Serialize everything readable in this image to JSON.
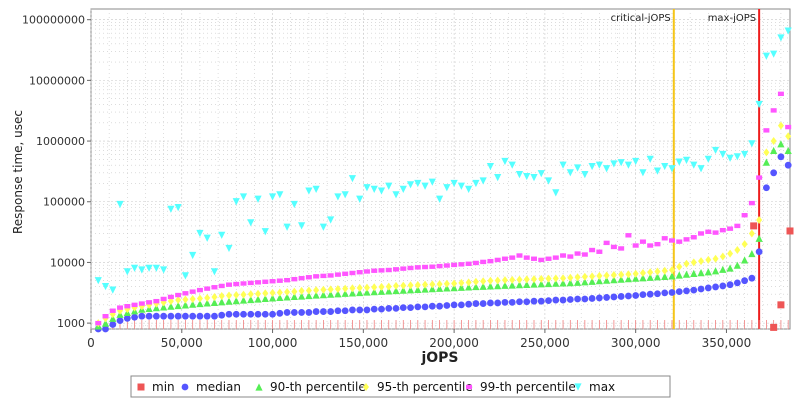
{
  "chart_data": {
    "type": "scatter",
    "title": "",
    "xlabel": "jOPS",
    "ylabel": "Response time, usec",
    "xlim": [
      0,
      385000
    ],
    "ylim": [
      800,
      150000000
    ],
    "y_scale": "log",
    "grid": true,
    "legend_position": "bottom",
    "x_ticks": [
      0,
      50000,
      100000,
      150000,
      200000,
      250000,
      300000,
      350000
    ],
    "x_tick_labels": [
      "0",
      "50,000",
      "100,000",
      "150,000",
      "200,000",
      "250,000",
      "300,000",
      "350,000"
    ],
    "y_ticks": [
      1000,
      10000,
      100000,
      1000000,
      10000000,
      100000000
    ],
    "y_tick_labels": [
      "1000",
      "10000",
      "100000",
      "1000000",
      "10000000",
      "100000000"
    ],
    "vlines": [
      {
        "label": "critical-jOPS",
        "x": 321000,
        "color": "#f5c518"
      },
      {
        "label": "max-jOPS",
        "x": 368000,
        "color": "#ee1c1c"
      }
    ],
    "series": [
      {
        "name": "min",
        "color": "#ee5555",
        "marker": "square",
        "x": [
          365000,
          376000,
          380000,
          385000
        ],
        "y": [
          40000,
          850,
          2000,
          33000
        ]
      },
      {
        "name": "median",
        "color": "#5555ff",
        "marker": "circle",
        "x": [
          4000,
          8000,
          12000,
          16000,
          20000,
          24000,
          28000,
          32000,
          36000,
          40000,
          44000,
          48000,
          52000,
          56000,
          60000,
          64000,
          68000,
          72000,
          76000,
          80000,
          84000,
          88000,
          92000,
          96000,
          100000,
          104000,
          108000,
          112000,
          116000,
          120000,
          124000,
          128000,
          132000,
          136000,
          140000,
          144000,
          148000,
          152000,
          156000,
          160000,
          164000,
          168000,
          172000,
          176000,
          180000,
          184000,
          188000,
          192000,
          196000,
          200000,
          204000,
          208000,
          212000,
          216000,
          220000,
          224000,
          228000,
          232000,
          236000,
          240000,
          244000,
          248000,
          252000,
          256000,
          260000,
          264000,
          268000,
          272000,
          276000,
          280000,
          284000,
          288000,
          292000,
          296000,
          300000,
          304000,
          308000,
          312000,
          316000,
          320000,
          324000,
          328000,
          332000,
          336000,
          340000,
          344000,
          348000,
          352000,
          356000,
          360000,
          364000,
          368000,
          372000,
          376000,
          380000,
          384000
        ],
        "y": [
          800,
          800,
          950,
          1100,
          1200,
          1250,
          1300,
          1300,
          1300,
          1300,
          1300,
          1300,
          1300,
          1300,
          1300,
          1300,
          1300,
          1350,
          1400,
          1400,
          1400,
          1400,
          1400,
          1400,
          1400,
          1450,
          1500,
          1500,
          1500,
          1500,
          1550,
          1550,
          1550,
          1600,
          1600,
          1650,
          1650,
          1650,
          1700,
          1700,
          1750,
          1750,
          1800,
          1800,
          1850,
          1850,
          1900,
          1900,
          1950,
          2000,
          2000,
          2050,
          2100,
          2100,
          2150,
          2150,
          2200,
          2200,
          2250,
          2250,
          2300,
          2300,
          2350,
          2400,
          2400,
          2450,
          2500,
          2500,
          2550,
          2600,
          2650,
          2700,
          2750,
          2800,
          2850,
          2950,
          3000,
          3050,
          3150,
          3200,
          3300,
          3400,
          3500,
          3650,
          3800,
          3950,
          4100,
          4300,
          4600,
          5000,
          5500,
          15000,
          170000,
          300000,
          550000,
          400000
        ]
      },
      {
        "name": "90-th percentile",
        "color": "#55ee55",
        "marker": "triangle-up",
        "x": [
          4000,
          8000,
          12000,
          16000,
          20000,
          24000,
          28000,
          32000,
          36000,
          40000,
          44000,
          48000,
          52000,
          56000,
          60000,
          64000,
          68000,
          72000,
          76000,
          80000,
          84000,
          88000,
          92000,
          96000,
          100000,
          104000,
          108000,
          112000,
          116000,
          120000,
          124000,
          128000,
          132000,
          136000,
          140000,
          144000,
          148000,
          152000,
          156000,
          160000,
          164000,
          168000,
          172000,
          176000,
          180000,
          184000,
          188000,
          192000,
          196000,
          200000,
          204000,
          208000,
          212000,
          216000,
          220000,
          224000,
          228000,
          232000,
          236000,
          240000,
          244000,
          248000,
          252000,
          256000,
          260000,
          264000,
          268000,
          272000,
          276000,
          280000,
          284000,
          288000,
          292000,
          296000,
          300000,
          304000,
          308000,
          312000,
          316000,
          320000,
          324000,
          328000,
          332000,
          336000,
          340000,
          344000,
          348000,
          352000,
          356000,
          360000,
          364000,
          368000,
          372000,
          376000,
          380000,
          384000
        ],
        "y": [
          900,
          1000,
          1200,
          1400,
          1500,
          1600,
          1700,
          1750,
          1800,
          1850,
          1900,
          1950,
          2000,
          2050,
          2100,
          2150,
          2200,
          2250,
          2300,
          2350,
          2400,
          2450,
          2500,
          2550,
          2600,
          2650,
          2700,
          2750,
          2800,
          2850,
          2900,
          2950,
          3000,
          3050,
          3100,
          3150,
          3200,
          3250,
          3300,
          3350,
          3400,
          3450,
          3500,
          3550,
          3600,
          3650,
          3700,
          3750,
          3800,
          3850,
          3900,
          3950,
          4000,
          4050,
          4100,
          4150,
          4200,
          4250,
          4300,
          4350,
          4400,
          4450,
          4500,
          4550,
          4600,
          4650,
          4700,
          4800,
          4900,
          5000,
          5100,
          5200,
          5300,
          5400,
          5500,
          5600,
          5700,
          5800,
          5900,
          6000,
          6200,
          6400,
          6600,
          6800,
          7000,
          7300,
          7700,
          8100,
          9000,
          11000,
          14000,
          25000,
          450000,
          700000,
          900000,
          700000
        ]
      },
      {
        "name": "95-th percentile",
        "color": "#ffff55",
        "marker": "diamond",
        "x": [
          4000,
          8000,
          12000,
          16000,
          20000,
          24000,
          28000,
          32000,
          36000,
          40000,
          44000,
          48000,
          52000,
          56000,
          60000,
          64000,
          68000,
          72000,
          76000,
          80000,
          84000,
          88000,
          92000,
          96000,
          100000,
          104000,
          108000,
          112000,
          116000,
          120000,
          124000,
          128000,
          132000,
          136000,
          140000,
          144000,
          148000,
          152000,
          156000,
          160000,
          164000,
          168000,
          172000,
          176000,
          180000,
          184000,
          188000,
          192000,
          196000,
          200000,
          204000,
          208000,
          212000,
          216000,
          220000,
          224000,
          228000,
          232000,
          236000,
          240000,
          244000,
          248000,
          252000,
          256000,
          260000,
          264000,
          268000,
          272000,
          276000,
          280000,
          284000,
          288000,
          292000,
          296000,
          300000,
          304000,
          308000,
          312000,
          316000,
          320000,
          324000,
          328000,
          332000,
          336000,
          340000,
          344000,
          348000,
          352000,
          356000,
          360000,
          364000,
          368000,
          372000,
          376000,
          380000,
          384000
        ],
        "y": [
          1000,
          1200,
          1400,
          1600,
          1700,
          1800,
          1900,
          2000,
          2100,
          2200,
          2300,
          2400,
          2450,
          2500,
          2550,
          2600,
          2700,
          2800,
          2850,
          2900,
          2950,
          3000,
          3050,
          3100,
          3150,
          3200,
          3250,
          3300,
          3400,
          3450,
          3500,
          3550,
          3600,
          3650,
          3700,
          3750,
          3800,
          3850,
          3900,
          3950,
          4000,
          4100,
          4150,
          4200,
          4250,
          4300,
          4350,
          4400,
          4450,
          4500,
          4600,
          4700,
          4800,
          4900,
          5000,
          5050,
          5100,
          5150,
          5200,
          5250,
          5300,
          5350,
          5400,
          5450,
          5500,
          5600,
          5700,
          5800,
          5900,
          6000,
          6100,
          6200,
          6300,
          6400,
          6500,
          6700,
          6900,
          7100,
          7300,
          7500,
          8500,
          9500,
          10000,
          10500,
          11000,
          11500,
          12500,
          14000,
          16000,
          20000,
          30000,
          50000,
          650000,
          1000000,
          1800000,
          1200000
        ]
      },
      {
        "name": "99-th percentile",
        "color": "#ff55ff",
        "marker": "square-small",
        "x": [
          4000,
          8000,
          12000,
          16000,
          20000,
          24000,
          28000,
          32000,
          36000,
          40000,
          44000,
          48000,
          52000,
          56000,
          60000,
          64000,
          68000,
          72000,
          76000,
          80000,
          84000,
          88000,
          92000,
          96000,
          100000,
          104000,
          108000,
          112000,
          116000,
          120000,
          124000,
          128000,
          132000,
          136000,
          140000,
          144000,
          148000,
          152000,
          156000,
          160000,
          164000,
          168000,
          172000,
          176000,
          180000,
          184000,
          188000,
          192000,
          196000,
          200000,
          204000,
          208000,
          212000,
          216000,
          220000,
          224000,
          228000,
          232000,
          236000,
          240000,
          244000,
          248000,
          252000,
          256000,
          260000,
          264000,
          268000,
          272000,
          276000,
          280000,
          284000,
          288000,
          292000,
          296000,
          300000,
          304000,
          308000,
          312000,
          316000,
          320000,
          324000,
          328000,
          332000,
          336000,
          340000,
          344000,
          348000,
          352000,
          356000,
          360000,
          364000,
          368000,
          372000,
          376000,
          380000,
          384000
        ],
        "y": [
          1000,
          1300,
          1600,
          1800,
          1900,
          2000,
          2100,
          2200,
          2300,
          2500,
          2700,
          2900,
          3100,
          3300,
          3500,
          3700,
          3900,
          4100,
          4300,
          4400,
          4500,
          4600,
          4700,
          4800,
          4900,
          5000,
          5100,
          5300,
          5500,
          5700,
          5900,
          6000,
          6100,
          6300,
          6500,
          6700,
          6900,
          7100,
          7300,
          7400,
          7500,
          7700,
          7900,
          8100,
          8300,
          8400,
          8500,
          8700,
          8900,
          9100,
          9300,
          9500,
          9800,
          10200,
          10500,
          11000,
          11500,
          12000,
          13000,
          12000,
          11500,
          11000,
          11500,
          12000,
          13000,
          12500,
          14000,
          13500,
          16000,
          15000,
          21000,
          18000,
          17000,
          28000,
          19000,
          22000,
          19000,
          20000,
          25000,
          23000,
          22000,
          24000,
          26000,
          30000,
          32000,
          31000,
          34000,
          36000,
          40000,
          60000,
          95000,
          250000,
          1500000,
          3200000,
          6000000,
          1700000
        ]
      },
      {
        "name": "max",
        "color": "#55ffff",
        "marker": "triangle-down",
        "x": [
          4000,
          8000,
          12000,
          16000,
          20000,
          24000,
          28000,
          32000,
          36000,
          40000,
          44000,
          48000,
          52000,
          56000,
          60000,
          64000,
          68000,
          72000,
          76000,
          80000,
          84000,
          88000,
          92000,
          96000,
          100000,
          104000,
          108000,
          112000,
          116000,
          120000,
          124000,
          128000,
          132000,
          136000,
          140000,
          144000,
          148000,
          152000,
          156000,
          160000,
          164000,
          168000,
          172000,
          176000,
          180000,
          184000,
          188000,
          192000,
          196000,
          200000,
          204000,
          208000,
          212000,
          216000,
          220000,
          224000,
          228000,
          232000,
          236000,
          240000,
          244000,
          248000,
          252000,
          256000,
          260000,
          264000,
          268000,
          272000,
          276000,
          280000,
          284000,
          288000,
          292000,
          296000,
          300000,
          304000,
          308000,
          312000,
          316000,
          320000,
          324000,
          328000,
          332000,
          336000,
          340000,
          344000,
          348000,
          352000,
          356000,
          360000,
          364000,
          368000,
          372000,
          376000,
          380000,
          384000
        ],
        "y": [
          5000,
          4000,
          3500,
          90000,
          7000,
          8000,
          7500,
          8000,
          8000,
          7500,
          75000,
          80000,
          6000,
          13000,
          30000,
          25000,
          7000,
          28000,
          17000,
          100000,
          120000,
          45000,
          110000,
          32000,
          120000,
          130000,
          38000,
          90000,
          40000,
          150000,
          160000,
          38000,
          50000,
          120000,
          130000,
          240000,
          110000,
          170000,
          160000,
          150000,
          180000,
          130000,
          160000,
          190000,
          200000,
          180000,
          210000,
          110000,
          170000,
          200000,
          180000,
          160000,
          200000,
          220000,
          380000,
          250000,
          460000,
          400000,
          280000,
          260000,
          250000,
          290000,
          220000,
          140000,
          400000,
          300000,
          360000,
          280000,
          380000,
          400000,
          350000,
          420000,
          440000,
          400000,
          460000,
          300000,
          500000,
          320000,
          380000,
          350000,
          450000,
          480000,
          400000,
          350000,
          500000,
          700000,
          600000,
          520000,
          550000,
          600000,
          900000,
          4000000,
          25000000,
          27000000,
          50000000,
          65000000
        ]
      }
    ]
  }
}
